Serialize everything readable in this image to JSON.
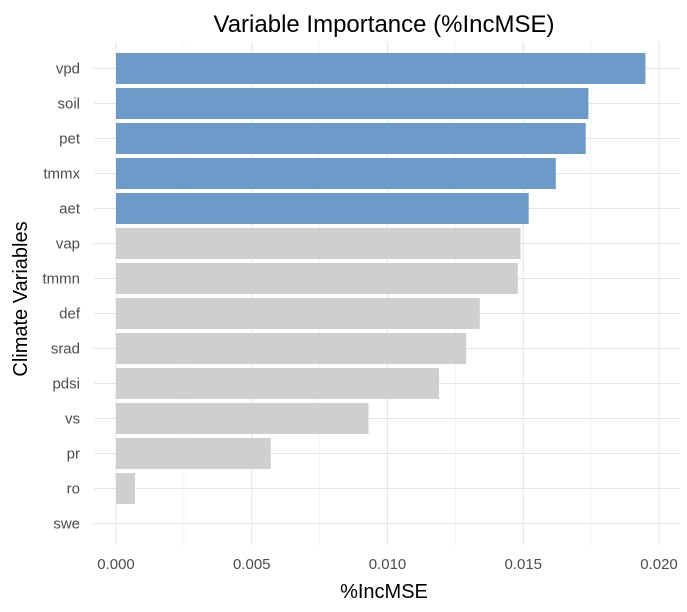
{
  "chart_data": {
    "type": "bar",
    "orientation": "horizontal",
    "title": "Variable Importance (%IncMSE)",
    "xlabel": "%IncMSE",
    "ylabel": "Climate Variables",
    "xlim": [
      0,
      0.02
    ],
    "x_ticks": [
      "0.000",
      "0.005",
      "0.010",
      "0.015",
      "0.020"
    ],
    "x_tick_values": [
      0,
      0.005,
      0.01,
      0.015,
      0.02
    ],
    "categories": [
      "vpd",
      "soil",
      "pet",
      "tmmx",
      "aet",
      "vap",
      "tmmn",
      "def",
      "srad",
      "pdsi",
      "vs",
      "pr",
      "ro",
      "swe"
    ],
    "values": [
      0.0195,
      0.0174,
      0.0173,
      0.0162,
      0.0152,
      0.0149,
      0.0148,
      0.0134,
      0.0129,
      0.0119,
      0.0093,
      0.0057,
      0.0007,
      0
    ],
    "highlighted": [
      true,
      true,
      true,
      true,
      true,
      false,
      false,
      false,
      false,
      false,
      false,
      false,
      false,
      false
    ],
    "colors": {
      "highlight": "#6c9bc9",
      "other": "#cfcfcf"
    },
    "grid": true,
    "legend": "none"
  }
}
